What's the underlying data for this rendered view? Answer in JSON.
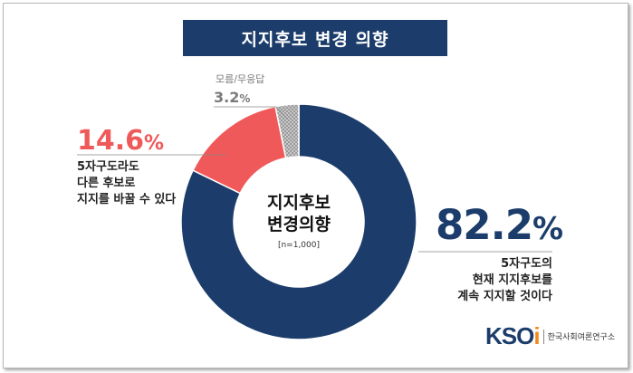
{
  "title": "지지후보 변경 의향",
  "center": {
    "title_line1": "지지후보",
    "title_line2": "변경의향",
    "n": "[n=1,000]"
  },
  "chart_data": {
    "type": "pie",
    "title": "지지후보 변경 의향",
    "slices": [
      {
        "label": "5자구도의 현재 지지후보를 계속 지지할 것이다",
        "value": 82.2,
        "color": "#1c3d6b"
      },
      {
        "label": "5자구도라도 다른 후보로 지지를 바꿀 수 있다",
        "value": 14.6,
        "color": "#f0595a"
      },
      {
        "label": "모름/무응답",
        "value": 3.2,
        "color": "#a6a6a6"
      }
    ]
  },
  "labels": {
    "blue_value": "82.2",
    "blue_pct": "%",
    "blue_desc": "5자구도의\n현재 지지후보를\n계속 지지할 것이다",
    "red_value": "14.6",
    "red_pct": "%",
    "red_desc": "5자구도라도\n다른 후보로\n지지를 바꿀 수 있다",
    "gray_label": "모름/무응답",
    "gray_value": "3.2",
    "gray_pct": "%"
  },
  "logo": {
    "mark": "KSO",
    "mark_i": "i",
    "name": "한국사회여론연구소"
  }
}
